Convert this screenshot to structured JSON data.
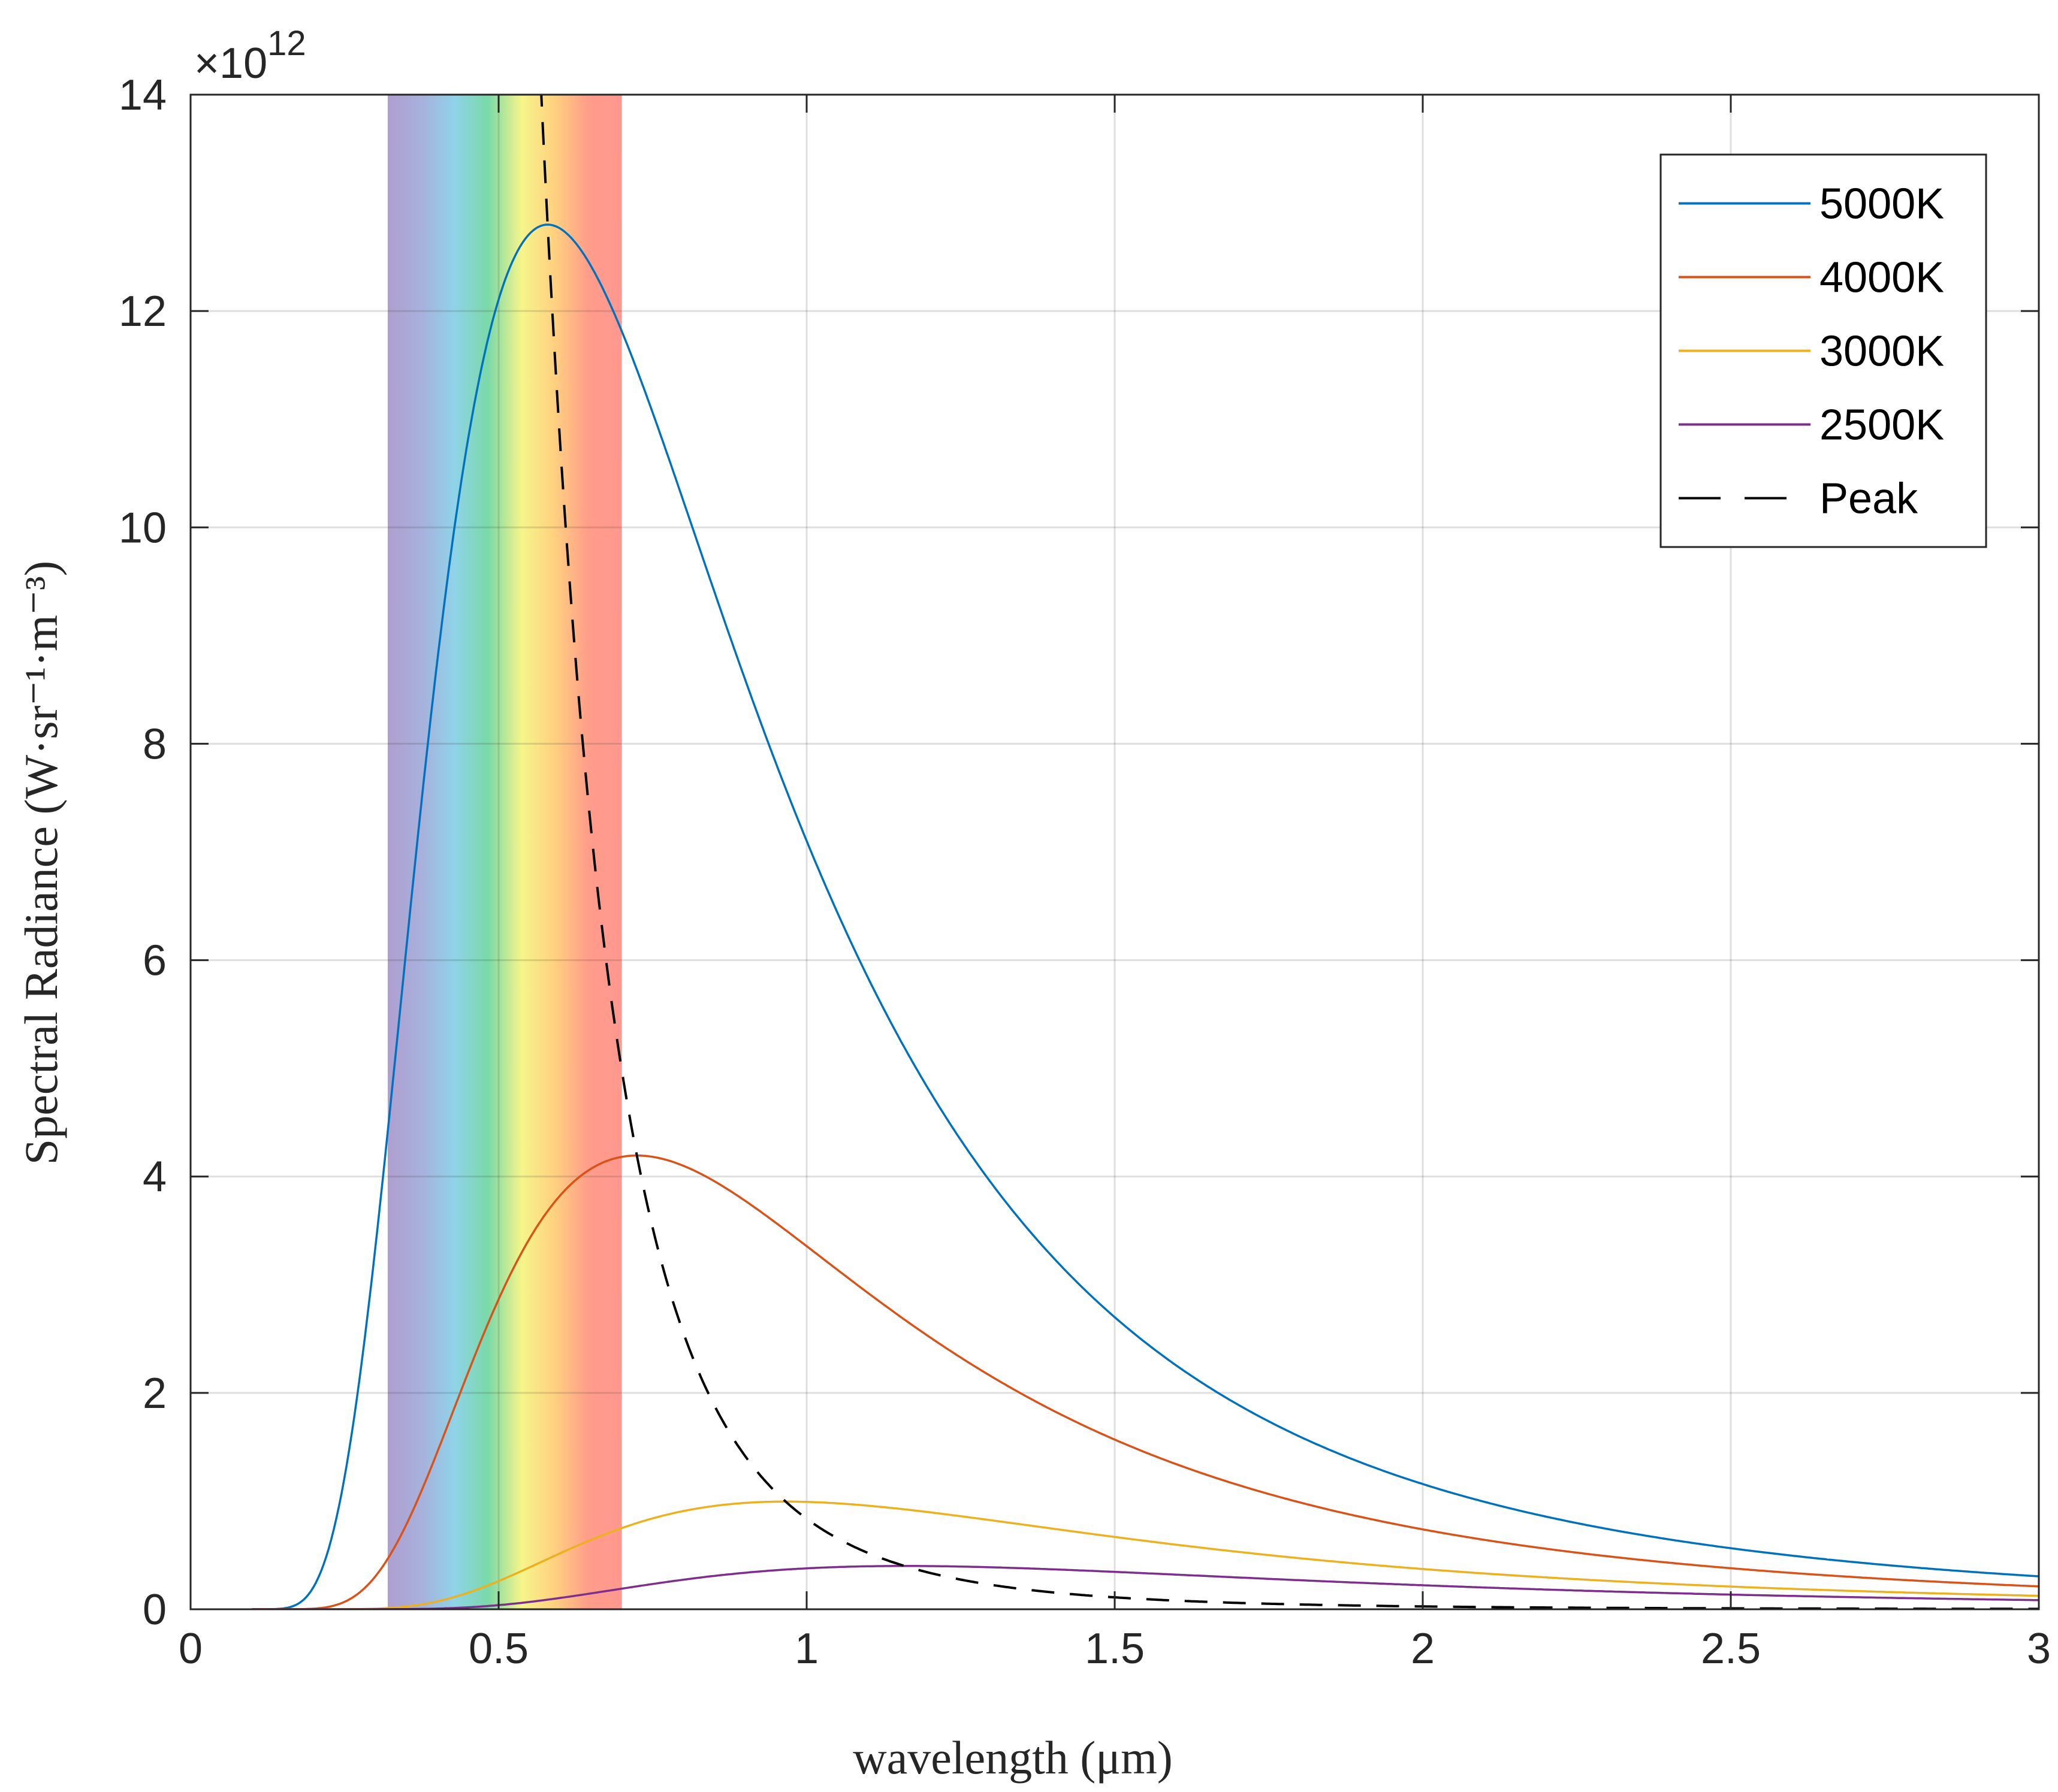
{
  "chart_data": {
    "type": "line",
    "title": "",
    "xlabel": "wavelength (μm)",
    "ylabel": "Spectral Radiance (W·sr⁻¹·m⁻³)",
    "xlim": [
      0,
      3
    ],
    "ylim": [
      0,
      14
    ],
    "x_ticks": [
      "0",
      "0.5",
      "1",
      "1.5",
      "2",
      "2.5",
      "3"
    ],
    "y_ticks": [
      "0",
      "2",
      "4",
      "6",
      "8",
      "10",
      "12",
      "14"
    ],
    "y_multiplier": {
      "base": "×10",
      "exponent": "12"
    },
    "grid": true,
    "legend_position": "top-right",
    "visible_band": {
      "from_um": 0.32,
      "to_um": 0.7,
      "colors": [
        "#ae9fcf",
        "#a8b0dc",
        "#8fd3e8",
        "#7ad9a8",
        "#f6f58a",
        "#ffd080",
        "#ff9c8a",
        "#ff9890"
      ]
    },
    "series": [
      {
        "name": "5000K",
        "temperature_K": 5000,
        "color": "#0072BD",
        "peak_x": 0.58,
        "peak_y": 12.8
      },
      {
        "name": "4000K",
        "temperature_K": 4000,
        "color": "#D95319",
        "peak_x": 0.72,
        "peak_y": 4.2
      },
      {
        "name": "3000K",
        "temperature_K": 3000,
        "color": "#EDB120",
        "peak_x": 0.97,
        "peak_y": 1.0
      },
      {
        "name": "2500K",
        "temperature_K": 2500,
        "color": "#7E2F8E",
        "peak_x": 1.16,
        "peak_y": 0.4
      },
      {
        "name": "Peak",
        "color": "#000000",
        "style": "dashed",
        "formula": "Wien peak locus"
      }
    ]
  }
}
